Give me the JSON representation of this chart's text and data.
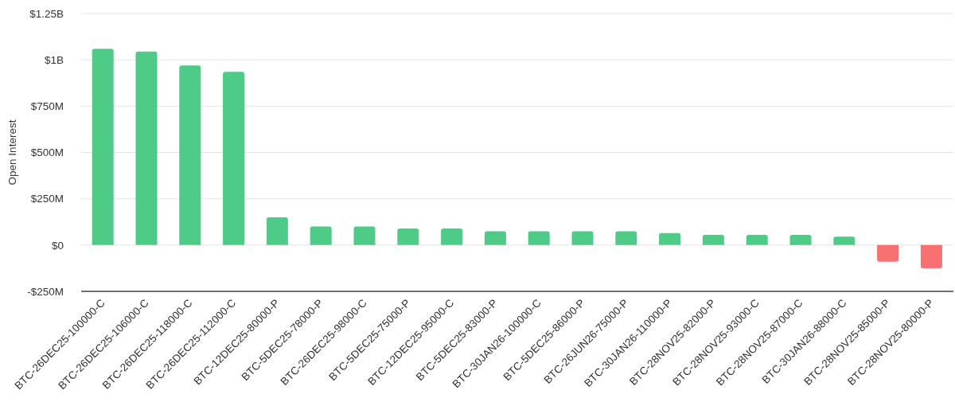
{
  "chart_data": {
    "type": "bar",
    "ylabel": "Open Interest",
    "categories": [
      "BTC-26DEC25-100000-C",
      "BTC-26DEC25-106000-C",
      "BTC-26DEC25-118000-C",
      "BTC-26DEC25-112000-C",
      "BTC-12DEC25-80000-P",
      "BTC-5DEC25-78000-P",
      "BTC-26DEC25-98000-C",
      "BTC-5DEC25-75000-P",
      "BTC-12DEC25-95000-C",
      "BTC-5DEC25-83000-P",
      "BTC-30JAN26-100000-C",
      "BTC-5DEC25-86000-P",
      "BTC-26JUN26-75000-P",
      "BTC-30JAN26-110000-P",
      "BTC-28NOV25-82000-P",
      "BTC-28NOV25-93000-C",
      "BTC-28NOV25-87000-C",
      "BTC-30JAN26-88000-C",
      "BTC-28NOV25-85000-P",
      "BTC-28NOV25-80000-P"
    ],
    "values": [
      1060000000,
      1045000000,
      970000000,
      935000000,
      150000000,
      100000000,
      100000000,
      90000000,
      90000000,
      75000000,
      75000000,
      75000000,
      75000000,
      65000000,
      55000000,
      55000000,
      55000000,
      45000000,
      -90000000,
      -125000000
    ],
    "colors": [
      "#4fcb88",
      "#4fcb88",
      "#4fcb88",
      "#4fcb88",
      "#4fcb88",
      "#4fcb88",
      "#4fcb88",
      "#4fcb88",
      "#4fcb88",
      "#4fcb88",
      "#4fcb88",
      "#4fcb88",
      "#4fcb88",
      "#4fcb88",
      "#4fcb88",
      "#4fcb88",
      "#4fcb88",
      "#4fcb88",
      "#f87171",
      "#f87171"
    ],
    "ylim": [
      -250000000,
      1250000000
    ],
    "yticks": [
      {
        "value": -250000000,
        "label": "-$250M"
      },
      {
        "value": 0,
        "label": "$0"
      },
      {
        "value": 250000000,
        "label": "$250M"
      },
      {
        "value": 500000000,
        "label": "$500M"
      },
      {
        "value": 750000000,
        "label": "$750M"
      },
      {
        "value": 1000000000,
        "label": "$1B"
      },
      {
        "value": 1250000000,
        "label": "$1.25B"
      }
    ],
    "grid": "y"
  }
}
